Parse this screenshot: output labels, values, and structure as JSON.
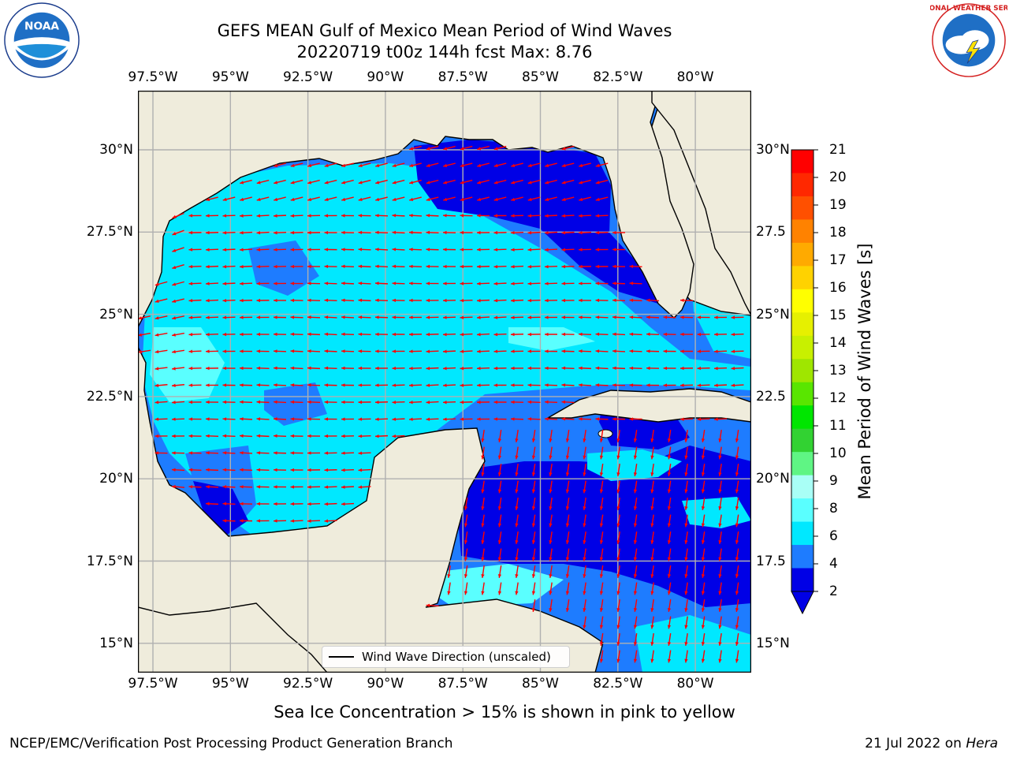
{
  "title": {
    "line1": "GEFS MEAN Gulf of Mexico Mean Period of Wind Waves",
    "line2": "20220719 t00z 144h fcst   Max: 8.76"
  },
  "logos": {
    "left": {
      "icon": "noaa-logo",
      "text": "NOAA",
      "ring": "NATIONAL OCEANIC AND ATMOSPHERIC ADMINISTRATION · U.S. DEPARTMENT OF COMMERCE"
    },
    "right": {
      "icon": "nws-logo",
      "ring": "NATIONAL WEATHER SERVICE"
    }
  },
  "map": {
    "lon_labels": [
      "97.5°W",
      "95°W",
      "92.5°W",
      "90°W",
      "87.5°W",
      "85°W",
      "82.5°W",
      "80°W"
    ],
    "lat_labels_left": [
      "30°N",
      "27.5°N",
      "25°N",
      "22.5°N",
      "20°N",
      "17.5°N",
      "15°N"
    ],
    "lat_labels_right": [
      "30°N",
      "27.5",
      "25°N",
      "22.5",
      "20°N",
      "17.5",
      "15°N"
    ],
    "arrow_color": "#ff0000",
    "land_color": "#efecdc",
    "grid_color": "#b0b0b0"
  },
  "colorbar": {
    "title": "Mean Period of Wind Waves [s]",
    "ticks": [
      "2",
      "4",
      "6",
      "8",
      "9",
      "10",
      "11",
      "12",
      "13",
      "14",
      "15",
      "16",
      "17",
      "18",
      "19",
      "20",
      "21"
    ],
    "bands": [
      "#0000e6",
      "#1e7cff",
      "#00e8ff",
      "#5affff",
      "#a9fff6",
      "#5ff584",
      "#32d232",
      "#00e600",
      "#59e600",
      "#9fe600",
      "#c8f000",
      "#e6f000",
      "#ffff00",
      "#ffd200",
      "#ffaa00",
      "#ff8200",
      "#ff5000",
      "#ff2800",
      "#ff0000"
    ],
    "extend_color": "#0000e6"
  },
  "legend": {
    "label": "Wind Wave Direction (unscaled)"
  },
  "footnote": "Sea Ice Concentration > 15% is shown in pink to yellow",
  "credits": {
    "left": "NCEP/EMC/Verification Post Processing Product Generation Branch",
    "right_date": "21 Jul 2022 on ",
    "right_host": "Hera"
  }
}
